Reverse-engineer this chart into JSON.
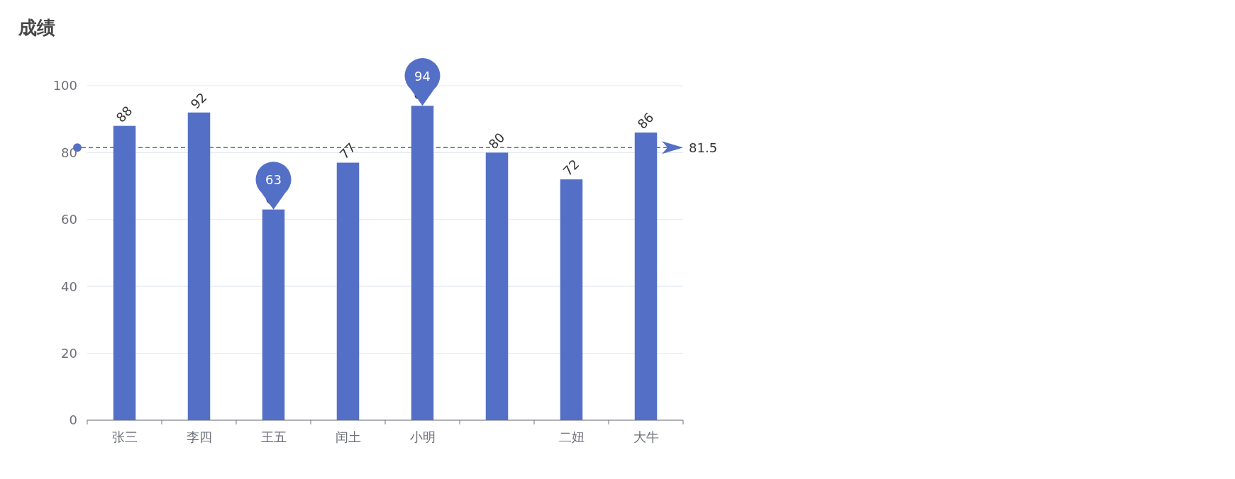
{
  "chart_data": {
    "type": "bar",
    "title": "成绩",
    "categories": [
      "张三",
      "李四",
      "王五",
      "闰土",
      "小明",
      null,
      "二妞",
      "大牛"
    ],
    "values": [
      88,
      92,
      63,
      77,
      94,
      80,
      72,
      86
    ],
    "color": "#5470c6",
    "ylim": [
      0,
      100
    ],
    "yticks": [
      0,
      20,
      40,
      60,
      80,
      100
    ],
    "grid": "y",
    "data_labels": true,
    "annotations": [
      {
        "text": "94",
        "x": "小明",
        "y": 94
      },
      {
        "text": "63",
        "x": "王五",
        "y": 63
      }
    ],
    "ref_lines": [
      {
        "axis": "y",
        "value": 81.5,
        "label": "81.5",
        "color": "#5470c6",
        "line_style": "dashed"
      }
    ]
  }
}
